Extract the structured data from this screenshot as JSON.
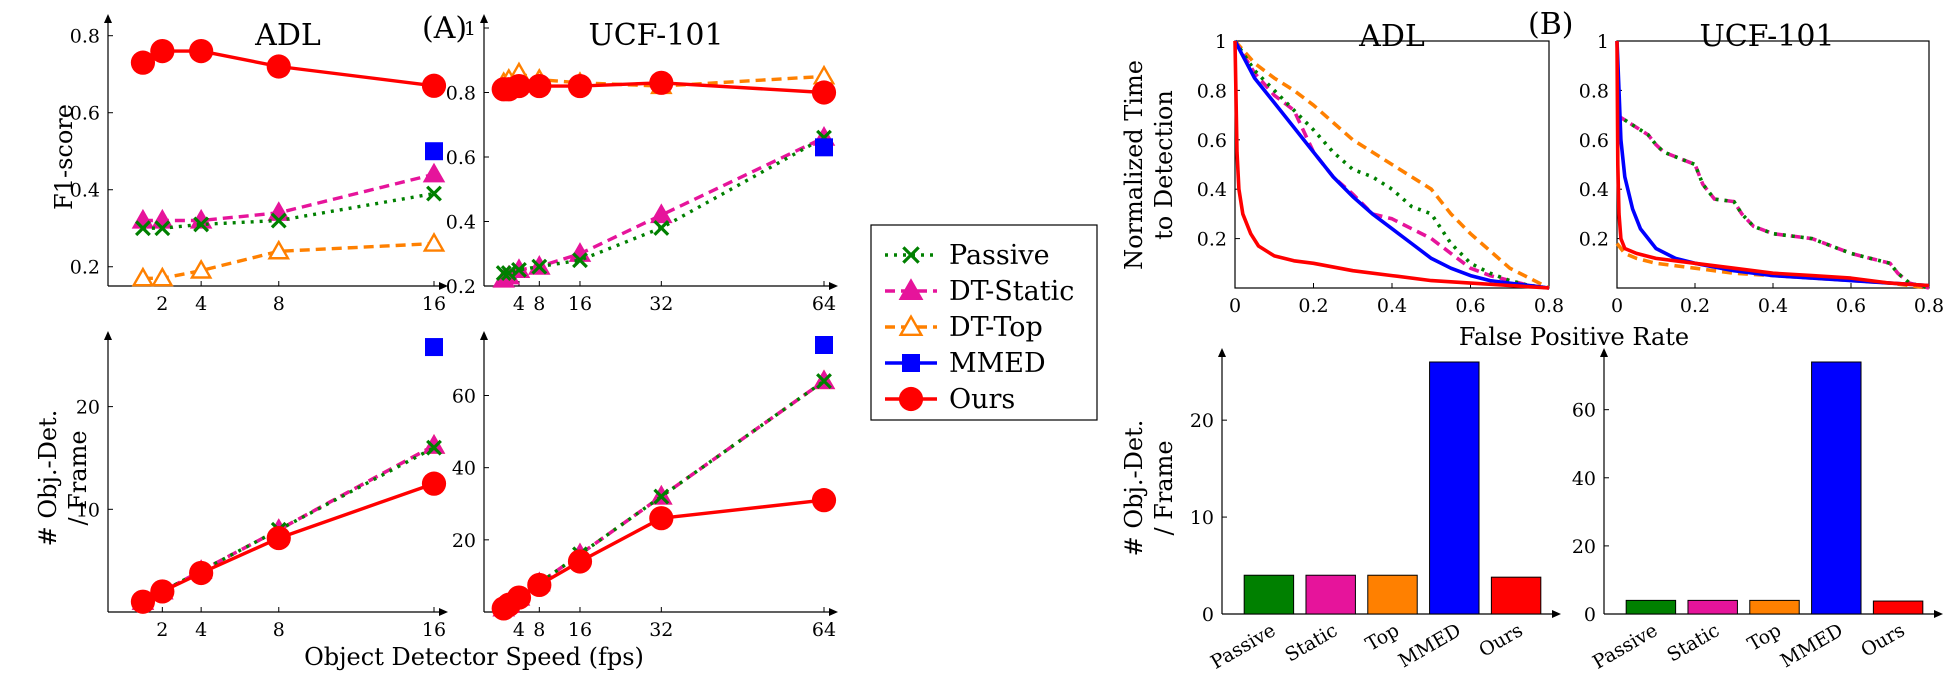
{
  "figure": {
    "panel_labels": [
      "(A)",
      "(B)"
    ],
    "shared_xlabel_A": "Object Detector Speed (fps)",
    "shared_xlabel_B": "False Positive Rate"
  },
  "legend": {
    "entries": [
      {
        "name": "Passive",
        "color": "#008000",
        "marker": "x",
        "dash": "dotted"
      },
      {
        "name": "DT-Static",
        "color": "#e6149b",
        "marker": "triangle-filled",
        "dash": "dashed"
      },
      {
        "name": "DT-Top",
        "color": "#ff8000",
        "marker": "triangle-open",
        "dash": "dashed"
      },
      {
        "name": "MMED",
        "color": "#0000ff",
        "marker": "square",
        "dash": "solid"
      },
      {
        "name": "Ours",
        "color": "#ff0000",
        "marker": "circle",
        "dash": "solid"
      }
    ]
  },
  "chart_data": [
    {
      "id": "a_adl_f1",
      "type": "line",
      "title": "ADL",
      "ylabel": "F1-score",
      "xlim": [
        0,
        16
      ],
      "ylim": [
        0.15,
        0.82
      ],
      "xticks": [
        2,
        4,
        8,
        16
      ],
      "yticks": [
        0.2,
        0.4,
        0.6,
        0.8
      ],
      "series": [
        {
          "name": "Passive",
          "x": [
            1,
            2,
            4,
            8,
            16
          ],
          "y": [
            0.3,
            0.3,
            0.31,
            0.32,
            0.39
          ]
        },
        {
          "name": "DT-Static",
          "x": [
            1,
            2,
            4,
            8,
            16
          ],
          "y": [
            0.32,
            0.32,
            0.32,
            0.34,
            0.44
          ]
        },
        {
          "name": "DT-Top",
          "x": [
            1,
            2,
            4,
            8,
            16
          ],
          "y": [
            0.17,
            0.17,
            0.19,
            0.24,
            0.26
          ]
        },
        {
          "name": "MMED",
          "x": [
            16
          ],
          "y": [
            0.5
          ]
        },
        {
          "name": "Ours",
          "x": [
            1,
            2,
            4,
            8,
            16
          ],
          "y": [
            0.73,
            0.76,
            0.76,
            0.72,
            0.67
          ]
        }
      ]
    },
    {
      "id": "a_ucf_f1",
      "type": "line",
      "title": "UCF-101",
      "xlim": [
        0,
        64
      ],
      "ylim": [
        0.2,
        1.0
      ],
      "xticks": [
        4,
        8,
        16,
        32,
        64
      ],
      "yticks": [
        0.2,
        0.4,
        0.6,
        0.8,
        1
      ],
      "series": [
        {
          "name": "Passive",
          "x": [
            1,
            2,
            4,
            8,
            16,
            32,
            64
          ],
          "y": [
            0.24,
            0.24,
            0.25,
            0.26,
            0.28,
            0.38,
            0.66
          ]
        },
        {
          "name": "DT-Static",
          "x": [
            1,
            2,
            4,
            8,
            16,
            32,
            64
          ],
          "y": [
            0.22,
            0.23,
            0.25,
            0.26,
            0.3,
            0.42,
            0.66
          ]
        },
        {
          "name": "DT-Top",
          "x": [
            1,
            2,
            4,
            8,
            16,
            32,
            64
          ],
          "y": [
            0.83,
            0.84,
            0.86,
            0.84,
            0.83,
            0.82,
            0.85
          ]
        },
        {
          "name": "MMED",
          "x": [
            64
          ],
          "y": [
            0.63
          ]
        },
        {
          "name": "Ours",
          "x": [
            1,
            2,
            4,
            8,
            16,
            32,
            64
          ],
          "y": [
            0.81,
            0.81,
            0.82,
            0.82,
            0.82,
            0.83,
            0.8
          ]
        }
      ]
    },
    {
      "id": "a_adl_cost",
      "type": "line",
      "ylabel": "# Obj.-Det. / Frame",
      "xlim": [
        0,
        16
      ],
      "ylim": [
        0,
        26
      ],
      "xticks": [
        2,
        4,
        8,
        16
      ],
      "yticks": [
        10,
        20
      ],
      "series": [
        {
          "name": "Passive",
          "x": [
            1,
            2,
            4,
            8,
            16
          ],
          "y": [
            1,
            2,
            4,
            8,
            16
          ]
        },
        {
          "name": "DT-Static",
          "x": [
            1,
            2,
            4,
            8,
            16
          ],
          "y": [
            1,
            2,
            4,
            8,
            16.2
          ]
        },
        {
          "name": "DT-Top",
          "x": [
            1,
            2,
            4,
            8,
            16
          ],
          "y": [
            1,
            2,
            4,
            8,
            16.2
          ]
        },
        {
          "name": "MMED",
          "x": [
            16
          ],
          "y": [
            25.8
          ]
        },
        {
          "name": "Ours",
          "x": [
            1,
            2,
            4,
            8,
            16
          ],
          "y": [
            1,
            2,
            3.8,
            7.2,
            12.5
          ]
        }
      ]
    },
    {
      "id": "a_ucf_cost",
      "type": "line",
      "xlim": [
        0,
        64
      ],
      "ylim": [
        0,
        74
      ],
      "xticks": [
        4,
        8,
        16,
        32,
        64
      ],
      "yticks": [
        20,
        40,
        60
      ],
      "series": [
        {
          "name": "Passive",
          "x": [
            1,
            2,
            4,
            8,
            16,
            32,
            64
          ],
          "y": [
            1,
            2,
            4,
            8,
            16,
            32,
            64
          ]
        },
        {
          "name": "DT-Static",
          "x": [
            1,
            2,
            4,
            8,
            16,
            32,
            64
          ],
          "y": [
            1,
            2,
            4,
            8,
            16,
            32,
            64
          ]
        },
        {
          "name": "DT-Top",
          "x": [
            1,
            2,
            4,
            8,
            16,
            32,
            64
          ],
          "y": [
            1,
            2,
            4,
            8,
            16,
            32,
            64
          ]
        },
        {
          "name": "MMED",
          "x": [
            64
          ],
          "y": [
            74
          ]
        },
        {
          "name": "Ours",
          "x": [
            1,
            2,
            4,
            8,
            16,
            32,
            64
          ],
          "y": [
            1,
            2,
            4,
            7.5,
            14,
            26,
            31
          ]
        }
      ]
    },
    {
      "id": "b_adl_ttd",
      "type": "line",
      "title": "ADL",
      "ylabel": "Normalized Time to Detection",
      "xlim": [
        0,
        0.8
      ],
      "ylim": [
        0,
        1
      ],
      "xticks": [
        0,
        0.2,
        0.4,
        0.6,
        0.8
      ],
      "yticks": [
        0.2,
        0.4,
        0.6,
        0.8,
        1
      ],
      "series": [
        {
          "name": "Passive",
          "x": [
            0,
            0.05,
            0.1,
            0.15,
            0.2,
            0.25,
            0.3,
            0.35,
            0.4,
            0.45,
            0.5,
            0.55,
            0.6,
            0.65,
            0.7,
            0.75,
            0.8
          ],
          "y": [
            1.0,
            0.88,
            0.8,
            0.72,
            0.64,
            0.55,
            0.48,
            0.45,
            0.4,
            0.33,
            0.3,
            0.18,
            0.1,
            0.06,
            0.03,
            0.01,
            0.0
          ]
        },
        {
          "name": "DT-Static",
          "x": [
            0,
            0.05,
            0.1,
            0.15,
            0.2,
            0.25,
            0.3,
            0.35,
            0.4,
            0.45,
            0.5,
            0.55,
            0.6,
            0.65,
            0.7,
            0.75,
            0.8
          ],
          "y": [
            1.0,
            0.87,
            0.78,
            0.72,
            0.55,
            0.45,
            0.38,
            0.3,
            0.28,
            0.24,
            0.2,
            0.14,
            0.08,
            0.05,
            0.03,
            0.01,
            0.0
          ]
        },
        {
          "name": "DT-Top",
          "x": [
            0,
            0.05,
            0.1,
            0.15,
            0.2,
            0.25,
            0.3,
            0.35,
            0.4,
            0.45,
            0.5,
            0.55,
            0.6,
            0.65,
            0.7,
            0.75,
            0.8
          ],
          "y": [
            1.0,
            0.91,
            0.85,
            0.8,
            0.74,
            0.67,
            0.6,
            0.55,
            0.5,
            0.45,
            0.4,
            0.3,
            0.22,
            0.15,
            0.08,
            0.04,
            0.0
          ]
        },
        {
          "name": "MMED",
          "x": [
            0,
            0.05,
            0.1,
            0.15,
            0.2,
            0.25,
            0.3,
            0.35,
            0.4,
            0.45,
            0.5,
            0.55,
            0.6,
            0.65,
            0.7,
            0.75,
            0.8
          ],
          "y": [
            1.0,
            0.85,
            0.75,
            0.65,
            0.55,
            0.45,
            0.37,
            0.3,
            0.24,
            0.18,
            0.12,
            0.08,
            0.05,
            0.03,
            0.02,
            0.01,
            0.0
          ]
        },
        {
          "name": "Ours",
          "x": [
            0,
            0.005,
            0.01,
            0.02,
            0.04,
            0.06,
            0.1,
            0.15,
            0.2,
            0.3,
            0.4,
            0.5,
            0.6,
            0.7,
            0.8
          ],
          "y": [
            1.0,
            0.55,
            0.4,
            0.3,
            0.22,
            0.17,
            0.13,
            0.11,
            0.1,
            0.07,
            0.05,
            0.03,
            0.02,
            0.01,
            0.0
          ]
        }
      ]
    },
    {
      "id": "b_ucf_ttd",
      "type": "line",
      "title": "UCF-101",
      "xlim": [
        0,
        0.8
      ],
      "ylim": [
        0,
        1
      ],
      "xticks": [
        0,
        0.2,
        0.4,
        0.6,
        0.8
      ],
      "yticks": [
        0.2,
        0.4,
        0.6,
        0.8,
        1
      ],
      "series": [
        {
          "name": "Passive",
          "x": [
            0,
            0.02,
            0.08,
            0.1,
            0.12,
            0.2,
            0.22,
            0.25,
            0.3,
            0.32,
            0.35,
            0.4,
            0.45,
            0.5,
            0.55,
            0.6,
            0.65,
            0.7,
            0.72,
            0.75,
            0.8
          ],
          "y": [
            0.7,
            0.68,
            0.62,
            0.58,
            0.55,
            0.5,
            0.42,
            0.36,
            0.35,
            0.3,
            0.25,
            0.22,
            0.21,
            0.2,
            0.17,
            0.14,
            0.12,
            0.1,
            0.06,
            0.02,
            0.0
          ]
        },
        {
          "name": "DT-Static",
          "x": [
            0,
            0.02,
            0.08,
            0.1,
            0.12,
            0.2,
            0.22,
            0.25,
            0.3,
            0.32,
            0.35,
            0.4,
            0.45,
            0.5,
            0.55,
            0.6,
            0.65,
            0.7,
            0.72,
            0.75,
            0.8
          ],
          "y": [
            0.7,
            0.68,
            0.62,
            0.58,
            0.55,
            0.5,
            0.42,
            0.36,
            0.35,
            0.3,
            0.25,
            0.22,
            0.21,
            0.2,
            0.17,
            0.14,
            0.12,
            0.1,
            0.06,
            0.02,
            0.0
          ]
        },
        {
          "name": "DT-Top",
          "x": [
            0,
            0.02,
            0.05,
            0.1,
            0.2,
            0.3,
            0.4,
            0.5,
            0.6,
            0.7,
            0.8
          ],
          "y": [
            0.18,
            0.14,
            0.12,
            0.1,
            0.08,
            0.06,
            0.05,
            0.04,
            0.03,
            0.02,
            0.0
          ]
        },
        {
          "name": "MMED",
          "x": [
            0,
            0.005,
            0.01,
            0.02,
            0.04,
            0.06,
            0.1,
            0.15,
            0.2,
            0.3,
            0.4,
            0.5,
            0.6,
            0.7,
            0.8
          ],
          "y": [
            1.0,
            0.8,
            0.6,
            0.45,
            0.32,
            0.24,
            0.16,
            0.12,
            0.1,
            0.07,
            0.05,
            0.04,
            0.03,
            0.02,
            0.01
          ]
        },
        {
          "name": "Ours",
          "x": [
            0,
            0.002,
            0.005,
            0.01,
            0.02,
            0.05,
            0.1,
            0.2,
            0.3,
            0.4,
            0.5,
            0.6,
            0.7,
            0.8
          ],
          "y": [
            1.0,
            0.5,
            0.3,
            0.2,
            0.16,
            0.14,
            0.12,
            0.1,
            0.08,
            0.06,
            0.05,
            0.04,
            0.02,
            0.01
          ]
        }
      ]
    },
    {
      "id": "b_adl_cost",
      "type": "bar",
      "ylabel": "# Obj.-Det. / Frame",
      "categories": [
        "Passive",
        "Static",
        "Top",
        "MMED",
        "Ours"
      ],
      "values": [
        4,
        4,
        4,
        26,
        3.8
      ],
      "colors": [
        "#008000",
        "#e6149b",
        "#ff8000",
        "#0000ff",
        "#ff0000"
      ],
      "ylim": [
        0,
        26
      ],
      "yticks": [
        0,
        10,
        20
      ]
    },
    {
      "id": "b_ucf_cost",
      "type": "bar",
      "categories": [
        "Passive",
        "Static",
        "Top",
        "MMED",
        "Ours"
      ],
      "values": [
        4,
        4,
        4,
        74,
        3.8
      ],
      "colors": [
        "#008000",
        "#e6149b",
        "#ff8000",
        "#0000ff",
        "#ff0000"
      ],
      "ylim": [
        0,
        74
      ],
      "yticks": [
        0,
        20,
        40,
        60
      ]
    }
  ]
}
